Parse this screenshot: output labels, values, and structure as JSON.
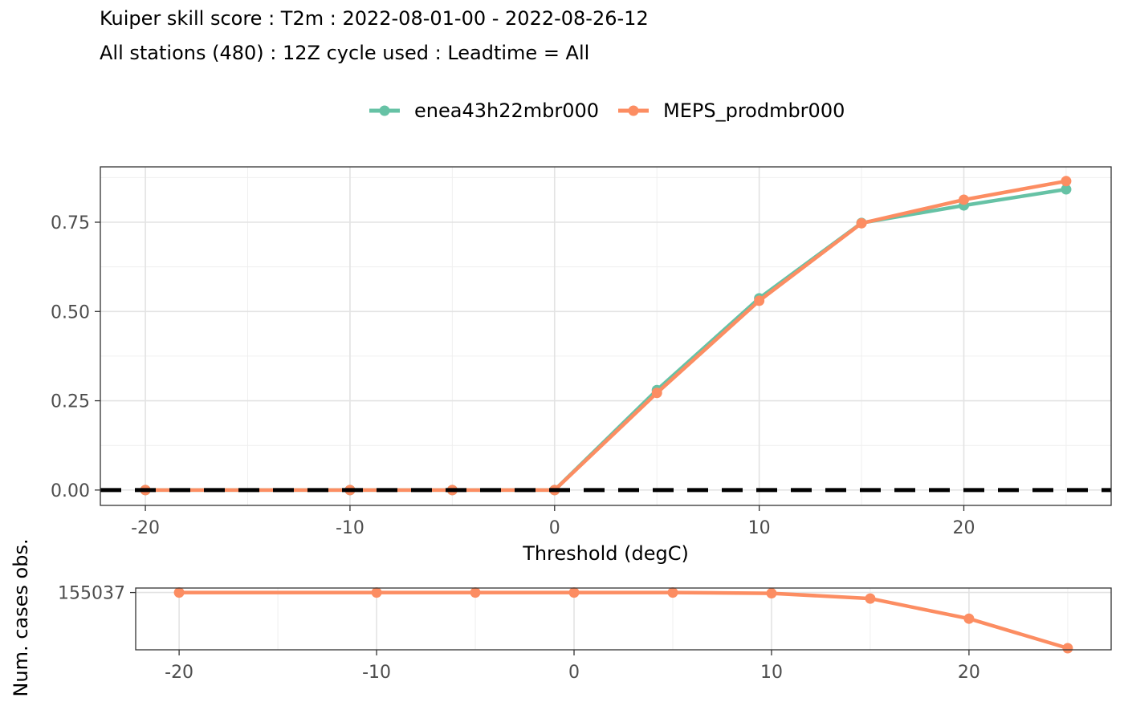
{
  "colors": {
    "enea": "#66C2A5",
    "meps": "#FC8D62",
    "zero_line": "#000000"
  },
  "header": {
    "title": "Kuiper skill score : T2m : 2022-08-01-00 - 2022-08-26-12",
    "subtitle": "All stations (480) : 12Z cycle used : Leadtime = All"
  },
  "chart_data": [
    {
      "type": "line",
      "title": "Kuiper skill score : T2m : 2022-08-01-00 - 2022-08-26-12",
      "subtitle": "All stations (480) : 12Z cycle used : Leadtime = All",
      "xlabel": "Threshold (degC)",
      "ylabel": "",
      "x": [
        -20,
        -10,
        -5,
        0,
        5,
        10,
        15,
        20,
        25
      ],
      "xlim": [
        -22.2,
        27.2
      ],
      "ylim": [
        -0.043,
        0.905
      ],
      "xticks": [
        -20,
        -10,
        0,
        10,
        20
      ],
      "yticks": [
        0.0,
        0.25,
        0.5,
        0.75
      ],
      "ytick_labels": [
        "0.00",
        "0.25",
        "0.50",
        "0.75"
      ],
      "grid": true,
      "legend_position": "top",
      "reference_line": {
        "y": 0,
        "style": "dashed"
      },
      "series": [
        {
          "name": "enea43h22mbr000",
          "values": [
            0,
            0,
            0,
            0,
            0.28,
            0.537,
            0.748,
            0.797,
            0.842
          ]
        },
        {
          "name": "MEPS_prodmbr000",
          "values": [
            0,
            0,
            0,
            0,
            0.272,
            0.53,
            0.747,
            0.813,
            0.865
          ]
        }
      ]
    },
    {
      "type": "line",
      "xlabel": "",
      "ylabel": "Num. cases obs.",
      "x": [
        -20,
        -10,
        -5,
        0,
        5,
        10,
        15,
        20,
        25
      ],
      "xlim": [
        -22.2,
        27.2
      ],
      "ylim": [
        130000,
        157000
      ],
      "xticks": [
        -20,
        -10,
        0,
        10,
        20
      ],
      "yticks": [
        155037
      ],
      "ytick_labels": [
        "155037"
      ],
      "grid": true,
      "series": [
        {
          "values": [
            155037,
            155037,
            155037,
            155037,
            155037,
            154700,
            152400,
            143600,
            130700
          ]
        }
      ]
    }
  ]
}
